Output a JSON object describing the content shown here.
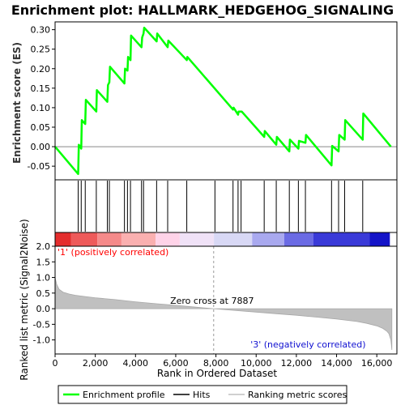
{
  "chart_data": {
    "type": "line",
    "title": "Enrichment plot: HALLMARK_HEDGEHOG_SIGNALING",
    "xlabel": "Rank in Ordered Dataset",
    "xlim": [
      0,
      17000
    ],
    "x_ticks": [
      0,
      2000,
      4000,
      6000,
      8000,
      10000,
      12000,
      14000,
      16000
    ],
    "x_tick_labels": [
      "0",
      "2,000",
      "4,000",
      "6,000",
      "8,000",
      "10,000",
      "12,000",
      "14,000",
      "16,000"
    ],
    "es_panel": {
      "ylabel": "Enrichment score (ES)",
      "ylim": [
        -0.085,
        0.32
      ],
      "y_ticks": [
        -0.05,
        0.0,
        0.05,
        0.1,
        0.15,
        0.2,
        0.25,
        0.3
      ],
      "y_tick_labels": [
        "-0.05",
        "0.00",
        "0.05",
        "0.10",
        "0.15",
        "0.20",
        "0.25",
        "0.30"
      ],
      "series": [
        {
          "name": "Enrichment profile",
          "color": "#00ff00",
          "x": [
            0,
            1150,
            1180,
            1300,
            1330,
            1500,
            1530,
            2050,
            2080,
            2600,
            2630,
            2700,
            2730,
            3450,
            3480,
            3600,
            3630,
            3750,
            3780,
            4300,
            4330,
            4400,
            4430,
            5050,
            5080,
            5600,
            5630,
            6550,
            6580,
            8850,
            8880,
            9100,
            9130,
            9250,
            9280,
            10400,
            10430,
            11000,
            11030,
            11650,
            11680,
            12100,
            12130,
            12450,
            12480,
            13750,
            13780,
            14100,
            14130,
            14400,
            14430,
            15300,
            15330,
            16700
          ],
          "y": [
            0.0,
            -0.07,
            0.005,
            -0.005,
            0.068,
            0.058,
            0.12,
            0.09,
            0.145,
            0.115,
            0.158,
            0.165,
            0.205,
            0.162,
            0.2,
            0.195,
            0.23,
            0.222,
            0.285,
            0.255,
            0.28,
            0.29,
            0.305,
            0.27,
            0.29,
            0.255,
            0.272,
            0.222,
            0.23,
            0.095,
            0.1,
            0.082,
            0.09,
            0.09,
            0.09,
            0.025,
            0.04,
            0.005,
            0.025,
            -0.012,
            0.018,
            -0.005,
            0.015,
            0.01,
            0.03,
            -0.048,
            0.002,
            -0.012,
            0.03,
            0.018,
            0.068,
            0.018,
            0.085,
            0.0
          ]
        }
      ]
    },
    "hits_panel": {
      "name": "Hits",
      "positions": [
        1150,
        1300,
        1500,
        2050,
        2600,
        2700,
        3450,
        3600,
        3750,
        4300,
        4400,
        5050,
        5600,
        6550,
        7950,
        8850,
        9100,
        9250,
        10400,
        11000,
        11650,
        12100,
        12450,
        13750,
        14100,
        14400,
        15300
      ]
    },
    "heat_bar": {
      "colors": [
        "#e42d2d",
        "#ee5a5a",
        "#f58a8a",
        "#fab0b0",
        "#ffd3e8",
        "#f0e2f7",
        "#d8d8f5",
        "#a9a9ef",
        "#6b6be4",
        "#3a3ad8",
        "#1414c8"
      ],
      "breaks": [
        0,
        800,
        2100,
        3300,
        5000,
        6200,
        7900,
        9800,
        11400,
        12850,
        15650,
        16650
      ]
    },
    "metric_panel": {
      "ylabel": "Ranked list metric (Signal2Noise)",
      "ylim": [
        -1.45,
        2.0
      ],
      "y_ticks": [
        -1.0,
        -0.5,
        0.0,
        0.5,
        1.0,
        1.5,
        2.0
      ],
      "y_tick_labels": [
        "-1.0",
        "-0.5",
        "0.0",
        "0.5",
        "1.0",
        "1.5",
        "2.0"
      ],
      "series_name": "Ranking metric scores",
      "x": [
        0,
        80,
        200,
        400,
        700,
        1000,
        1500,
        2000,
        3000,
        4000,
        5000,
        6000,
        7000,
        7887,
        9000,
        10000,
        11000,
        12000,
        13000,
        14000,
        15000,
        15500,
        16000,
        16300,
        16500,
        16600,
        16700,
        16750
      ],
      "y": [
        1.0,
        0.78,
        0.62,
        0.53,
        0.47,
        0.43,
        0.39,
        0.35,
        0.29,
        0.22,
        0.16,
        0.11,
        0.05,
        0.0,
        -0.06,
        -0.11,
        -0.16,
        -0.21,
        -0.27,
        -0.33,
        -0.41,
        -0.47,
        -0.55,
        -0.63,
        -0.72,
        -0.8,
        -1.0,
        -1.32
      ],
      "zero_cross_label": "Zero cross at 7887",
      "zero_cross": 7887,
      "positive_label": "'1' (positively correlated)",
      "negative_label": "'3' (negatively correlated)"
    },
    "legend": {
      "items": [
        {
          "label": "Enrichment profile",
          "color": "#00ff00"
        },
        {
          "label": "Hits",
          "color": "#000000"
        },
        {
          "label": "Ranking metric scores",
          "color": "#c0c0c0"
        }
      ]
    }
  }
}
